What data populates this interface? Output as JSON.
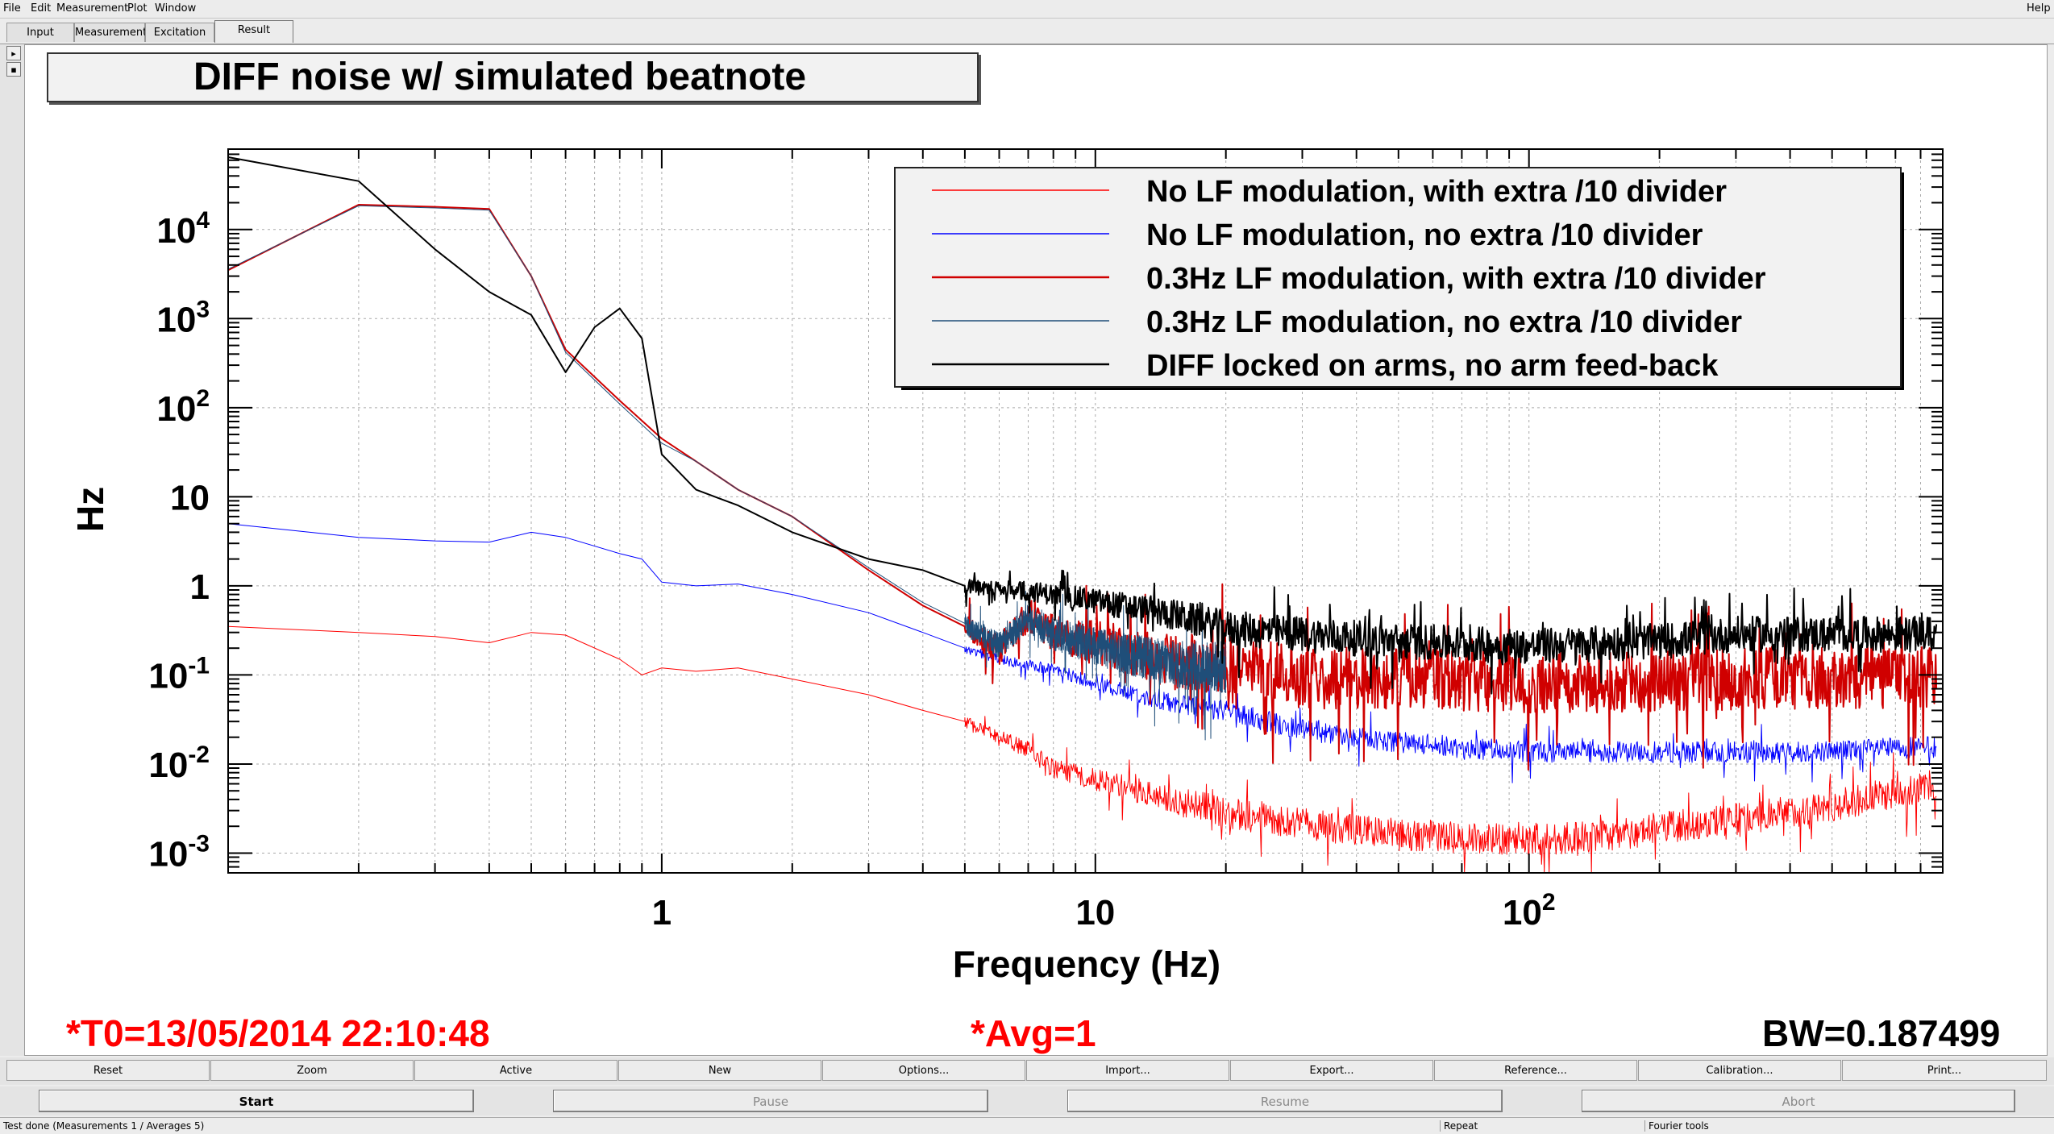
{
  "menu": {
    "items": [
      "File",
      "Edit",
      "Measurement",
      "Plot",
      "Window"
    ],
    "help": "Help"
  },
  "tabs": [
    {
      "label": "Input"
    },
    {
      "label": "Measurement"
    },
    {
      "label": "Excitation"
    },
    {
      "label": "Result"
    }
  ],
  "left_strip": {
    "arrow_label": "▸",
    "expand_label": "▪"
  },
  "chart_data": {
    "type": "line",
    "title": "DIFF noise w/ simulated beatnote",
    "xlabel": "Frequency (Hz)",
    "ylabel": "Hz",
    "xscale": "log",
    "yscale": "log",
    "xlim": [
      0.1,
      900
    ],
    "ylim": [
      0.0006,
      80000
    ],
    "grid": true,
    "legend_position": "top-right",
    "x_ticks": [
      {
        "value": 1,
        "base": "1",
        "exp": ""
      },
      {
        "value": 10,
        "base": "10",
        "exp": ""
      },
      {
        "value": 100,
        "base": "10",
        "exp": "2"
      }
    ],
    "y_ticks": [
      {
        "value": 10000,
        "base": "10",
        "exp": "4"
      },
      {
        "value": 1000,
        "base": "10",
        "exp": "3"
      },
      {
        "value": 100,
        "base": "10",
        "exp": "2"
      },
      {
        "value": 10,
        "base": "10",
        "exp": ""
      },
      {
        "value": 1,
        "base": "1",
        "exp": ""
      },
      {
        "value": 0.1,
        "base": "10",
        "exp": "-1"
      },
      {
        "value": 0.01,
        "base": "10",
        "exp": "-2"
      },
      {
        "value": 0.001,
        "base": "10",
        "exp": "-3"
      }
    ],
    "series": [
      {
        "name": "No LF modulation, with extra /10 divider",
        "color": "#ff0000",
        "width": 1,
        "points": [
          [
            0.1,
            0.35
          ],
          [
            0.2,
            0.3
          ],
          [
            0.3,
            0.27
          ],
          [
            0.4,
            0.23
          ],
          [
            0.5,
            0.3
          ],
          [
            0.6,
            0.28
          ],
          [
            0.8,
            0.15
          ],
          [
            0.9,
            0.1
          ],
          [
            1.0,
            0.12
          ],
          [
            1.2,
            0.11
          ],
          [
            1.5,
            0.12
          ],
          [
            2,
            0.09
          ],
          [
            3,
            0.06
          ],
          [
            4,
            0.04
          ],
          [
            5,
            0.03
          ],
          [
            6,
            0.02
          ],
          [
            7,
            0.015
          ],
          [
            8,
            0.009
          ],
          [
            10,
            0.007
          ],
          [
            15,
            0.004
          ],
          [
            20,
            0.003
          ],
          [
            30,
            0.0022
          ],
          [
            50,
            0.0017
          ],
          [
            80,
            0.0015
          ],
          [
            100,
            0.0015
          ],
          [
            150,
            0.0016
          ],
          [
            200,
            0.002
          ],
          [
            300,
            0.0025
          ],
          [
            500,
            0.0035
          ],
          [
            700,
            0.005
          ],
          [
            870,
            0.006
          ]
        ],
        "noise": 0.18
      },
      {
        "name": "No LF modulation, no extra /10 divider",
        "color": "#0000ff",
        "width": 1,
        "points": [
          [
            0.1,
            5
          ],
          [
            0.2,
            3.5
          ],
          [
            0.3,
            3.2
          ],
          [
            0.4,
            3.1
          ],
          [
            0.5,
            4
          ],
          [
            0.6,
            3.5
          ],
          [
            0.8,
            2.3
          ],
          [
            0.9,
            2
          ],
          [
            1.0,
            1.1
          ],
          [
            1.2,
            1.0
          ],
          [
            1.5,
            1.05
          ],
          [
            2,
            0.8
          ],
          [
            3,
            0.5
          ],
          [
            4,
            0.3
          ],
          [
            5,
            0.2
          ],
          [
            6,
            0.15
          ],
          [
            8,
            0.12
          ],
          [
            10,
            0.08
          ],
          [
            15,
            0.05
          ],
          [
            20,
            0.04
          ],
          [
            30,
            0.025
          ],
          [
            50,
            0.018
          ],
          [
            80,
            0.015
          ],
          [
            100,
            0.014
          ],
          [
            200,
            0.014
          ],
          [
            400,
            0.014
          ],
          [
            870,
            0.016
          ]
        ],
        "noise": 0.12
      },
      {
        "name": "0.3Hz LF modulation, with extra /10 divider",
        "color": "#d00000",
        "width": 2,
        "points": [
          [
            0.1,
            3500
          ],
          [
            0.2,
            19000
          ],
          [
            0.3,
            18000
          ],
          [
            0.4,
            17000
          ],
          [
            0.5,
            3000
          ],
          [
            0.6,
            450
          ],
          [
            0.8,
            120
          ],
          [
            1.0,
            45
          ],
          [
            1.2,
            25
          ],
          [
            1.5,
            12
          ],
          [
            2,
            6
          ],
          [
            3,
            1.5
          ],
          [
            4,
            0.6
          ],
          [
            5,
            0.35
          ],
          [
            6,
            0.2
          ],
          [
            7,
            0.5
          ],
          [
            8,
            0.3
          ],
          [
            10,
            0.25
          ],
          [
            15,
            0.15
          ],
          [
            20,
            0.15
          ],
          [
            30,
            0.1
          ],
          [
            50,
            0.1
          ],
          [
            100,
            0.09
          ],
          [
            200,
            0.09
          ],
          [
            400,
            0.1
          ],
          [
            870,
            0.1
          ]
        ],
        "noise": 0.35
      },
      {
        "name": "0.3Hz LF modulation, no extra /10 divider",
        "color": "#1f4e79",
        "width": 1,
        "points": [
          [
            0.1,
            3600
          ],
          [
            0.2,
            18500
          ],
          [
            0.3,
            17500
          ],
          [
            0.4,
            16500
          ],
          [
            0.5,
            3000
          ],
          [
            0.6,
            420
          ],
          [
            0.8,
            110
          ],
          [
            1.0,
            40
          ],
          [
            1.2,
            25
          ],
          [
            1.5,
            12
          ],
          [
            2,
            6
          ],
          [
            3,
            1.6
          ],
          [
            4,
            0.65
          ],
          [
            5,
            0.38
          ],
          [
            6,
            0.22
          ],
          [
            7,
            0.45
          ],
          [
            8,
            0.3
          ],
          [
            10,
            0.22
          ],
          [
            15,
            0.14
          ],
          [
            20,
            0.13
          ]
        ],
        "noise": 0.3
      },
      {
        "name": "DIFF locked on arms, no arm feed-back",
        "color": "#000000",
        "width": 2,
        "points": [
          [
            0.1,
            65000
          ],
          [
            0.2,
            35000
          ],
          [
            0.3,
            6000
          ],
          [
            0.4,
            2000
          ],
          [
            0.5,
            1100
          ],
          [
            0.6,
            250
          ],
          [
            0.7,
            800
          ],
          [
            0.8,
            1300
          ],
          [
            0.9,
            600
          ],
          [
            1.0,
            30
          ],
          [
            1.2,
            12
          ],
          [
            1.5,
            8
          ],
          [
            2,
            4
          ],
          [
            3,
            2
          ],
          [
            4,
            1.5
          ],
          [
            5,
            1.0
          ],
          [
            7,
            0.9
          ],
          [
            10,
            0.7
          ],
          [
            15,
            0.5
          ],
          [
            20,
            0.35
          ],
          [
            30,
            0.3
          ],
          [
            50,
            0.25
          ],
          [
            100,
            0.22
          ],
          [
            200,
            0.25
          ],
          [
            300,
            0.3
          ],
          [
            500,
            0.3
          ],
          [
            870,
            0.3
          ]
        ],
        "noise": 0.2
      }
    ]
  },
  "footer": {
    "t0": "*T0=13/05/2014 22:10:48",
    "avg": "*Avg=1",
    "bw": "BW=0.187499"
  },
  "toolbar": [
    "Reset",
    "Zoom",
    "Active",
    "New",
    "Options...",
    "Import...",
    "Export...",
    "Reference...",
    "Calibration...",
    "Print..."
  ],
  "controls": [
    "Start",
    "Pause",
    "Resume",
    "Abort"
  ],
  "status": {
    "message": "Test done (Measurements 1 / Averages 5)",
    "repeat": "Repeat",
    "tools": "Fourier tools"
  }
}
